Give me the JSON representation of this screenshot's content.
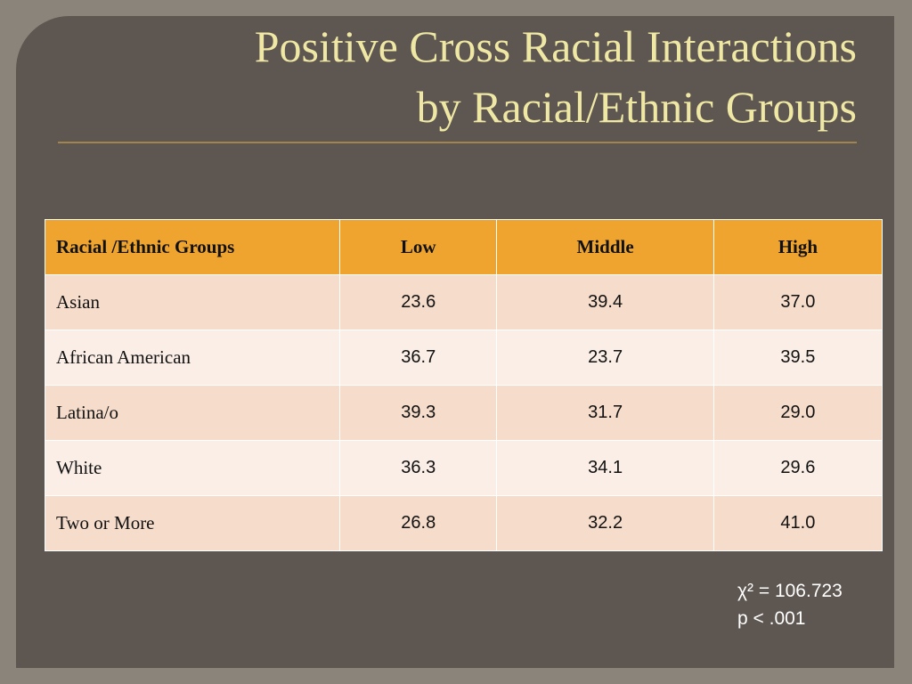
{
  "slide": {
    "title_lines": [
      "Positive Cross Racial Interactions",
      "by Racial/Ethnic Groups"
    ],
    "table": {
      "header": [
        "Racial /Ethnic Groups",
        "Low",
        "Middle",
        "High"
      ],
      "rows": [
        [
          "Asian",
          "23.6",
          "39.4",
          "37.0"
        ],
        [
          "African American",
          "36.7",
          "23.7",
          "39.5"
        ],
        [
          "Latina/o",
          "39.3",
          "31.7",
          "29.0"
        ],
        [
          "White",
          "36.3",
          "34.1",
          "29.6"
        ],
        [
          "Two or More",
          "26.8",
          "32.2",
          "41.0"
        ]
      ]
    },
    "stats": [
      "χ² = 106.723",
      "p < .001"
    ]
  }
}
